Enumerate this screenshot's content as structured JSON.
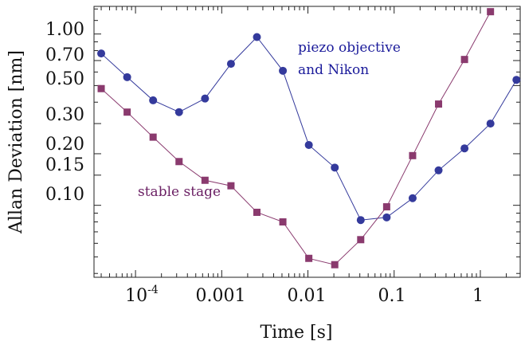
{
  "colors": {
    "series_blue": "#343a9c",
    "series_purple": "#8a3a6e",
    "text_blue": "#1a1a9a",
    "text_purple": "#6a1f63",
    "axis": "#222222"
  },
  "chart_data": {
    "type": "line",
    "x_scale": "log",
    "y_scale": "log",
    "xlabel": "Time [s]",
    "ylabel": "Allan Deviation [nm]",
    "xlim": [
      3.3e-05,
      2.9
    ],
    "ylim": [
      0.038,
      1.45
    ],
    "x_ticks": [
      {
        "value": 0.0001,
        "label": "10",
        "exp": "-4"
      },
      {
        "value": 0.001,
        "label": "0.001"
      },
      {
        "value": 0.01,
        "label": "0.01"
      },
      {
        "value": 0.1,
        "label": "0.1"
      },
      {
        "value": 1,
        "label": "1"
      }
    ],
    "y_ticks": [
      {
        "value": 1.0,
        "label": "1.00"
      },
      {
        "value": 0.7,
        "label": "0.70"
      },
      {
        "value": 0.5,
        "label": "0.50"
      },
      {
        "value": 0.3,
        "label": "0.30"
      },
      {
        "value": 0.2,
        "label": "0.20"
      },
      {
        "value": 0.15,
        "label": "0.15"
      },
      {
        "value": 0.1,
        "label": "0.10"
      }
    ],
    "grid": false,
    "series": [
      {
        "name": "piezo objective and Nikon",
        "marker": "circle",
        "color_key": "series_blue",
        "x": [
          4e-05,
          8e-05,
          0.00016,
          0.00032,
          0.00064,
          0.00128,
          0.00256,
          0.00512,
          0.01024,
          0.02048,
          0.04096,
          0.08192,
          0.16384,
          0.32768,
          0.65536,
          1.31072,
          2.62144
        ],
        "y": [
          0.77,
          0.56,
          0.41,
          0.35,
          0.42,
          0.67,
          0.96,
          0.61,
          0.225,
          0.166,
          0.082,
          0.085,
          0.11,
          0.16,
          0.215,
          0.3,
          0.54
        ]
      },
      {
        "name": "stable stage",
        "marker": "square",
        "color_key": "series_purple",
        "x": [
          4e-05,
          8e-05,
          0.00016,
          0.00032,
          0.00064,
          0.00128,
          0.00256,
          0.00512,
          0.01024,
          0.02048,
          0.04096,
          0.08192,
          0.16384,
          0.32768,
          0.65536,
          1.31072
        ],
        "y": [
          0.48,
          0.35,
          0.25,
          0.18,
          0.14,
          0.13,
          0.091,
          0.08,
          0.049,
          0.045,
          0.063,
          0.098,
          0.195,
          0.39,
          0.71,
          1.35
        ]
      }
    ],
    "annotations": [
      {
        "text": "piezo objective",
        "series": 0
      },
      {
        "text": "and Nikon",
        "series": 0
      },
      {
        "text": "stable stage",
        "series": 1
      }
    ]
  }
}
